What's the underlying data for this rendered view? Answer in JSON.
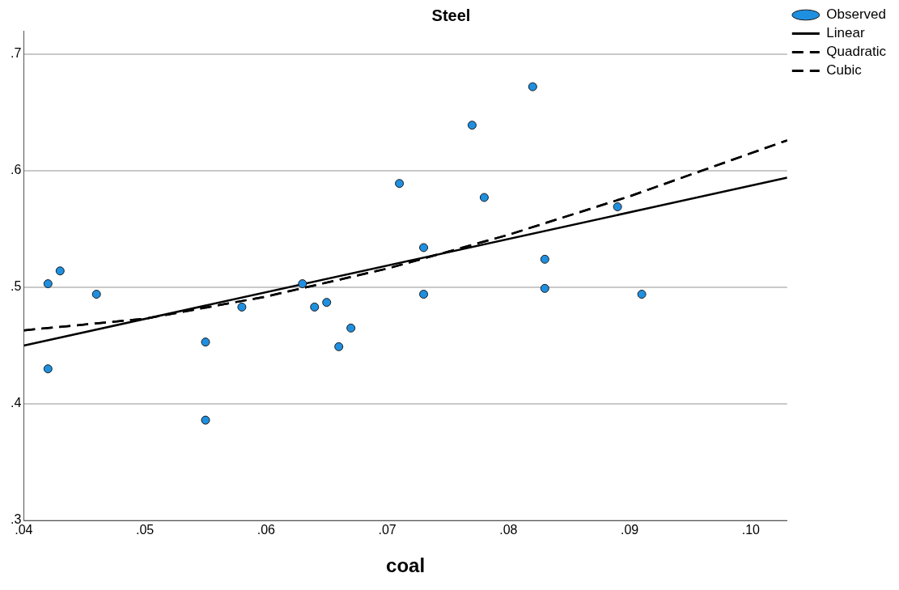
{
  "chart_data": {
    "type": "scatter",
    "title": "Steel",
    "xlabel": "coal",
    "xlim": [
      0.04,
      0.103
    ],
    "ylim": [
      0.3,
      0.72
    ],
    "xticks": [
      {
        "value": 0.04,
        "label": ".04"
      },
      {
        "value": 0.05,
        "label": ".05"
      },
      {
        "value": 0.06,
        "label": ".06"
      },
      {
        "value": 0.07,
        "label": ".07"
      },
      {
        "value": 0.08,
        "label": ".08"
      },
      {
        "value": 0.09,
        "label": ".09"
      },
      {
        "value": 0.1,
        "label": ".10"
      }
    ],
    "yticks": [
      {
        "value": 0.3,
        "label": ".3"
      },
      {
        "value": 0.4,
        "label": ".4"
      },
      {
        "value": 0.5,
        "label": ".5"
      },
      {
        "value": 0.6,
        "label": ".6"
      },
      {
        "value": 0.7,
        "label": ".7"
      }
    ],
    "grid": "y",
    "legend": "top right",
    "series": [
      {
        "name": "Observed",
        "marker": "circle",
        "color": "#1f8fe0",
        "x": [
          0.042,
          0.042,
          0.043,
          0.046,
          0.055,
          0.055,
          0.058,
          0.063,
          0.064,
          0.065,
          0.066,
          0.067,
          0.071,
          0.073,
          0.073,
          0.077,
          0.078,
          0.082,
          0.083,
          0.083,
          0.089,
          0.091
        ],
        "values": [
          0.503,
          0.43,
          0.514,
          0.494,
          0.453,
          0.386,
          0.483,
          0.503,
          0.483,
          0.487,
          0.449,
          0.465,
          0.589,
          0.534,
          0.494,
          0.639,
          0.577,
          0.672,
          0.524,
          0.499,
          0.569,
          0.494
        ]
      },
      {
        "name": "Linear",
        "type": "line",
        "marker": "none",
        "line_style": "solid",
        "color": "#000000",
        "x": [
          0.04,
          0.103
        ],
        "values": [
          0.45,
          0.594
        ]
      },
      {
        "name": "Quadratic",
        "type": "line",
        "marker": "none",
        "line_style": "dashed",
        "color": "#000000",
        "x": [
          0.04,
          0.05,
          0.06,
          0.07,
          0.08,
          0.09,
          0.103
        ],
        "values": [
          0.463,
          0.473,
          0.492,
          0.516,
          0.545,
          0.578,
          0.626
        ]
      },
      {
        "name": "Cubic",
        "type": "line",
        "marker": "none",
        "line_style": "dashed",
        "color": "#000000",
        "x": [
          0.04,
          0.05,
          0.06,
          0.07,
          0.08,
          0.09,
          0.103
        ],
        "values": [
          0.463,
          0.473,
          0.492,
          0.516,
          0.545,
          0.578,
          0.626
        ]
      }
    ]
  }
}
